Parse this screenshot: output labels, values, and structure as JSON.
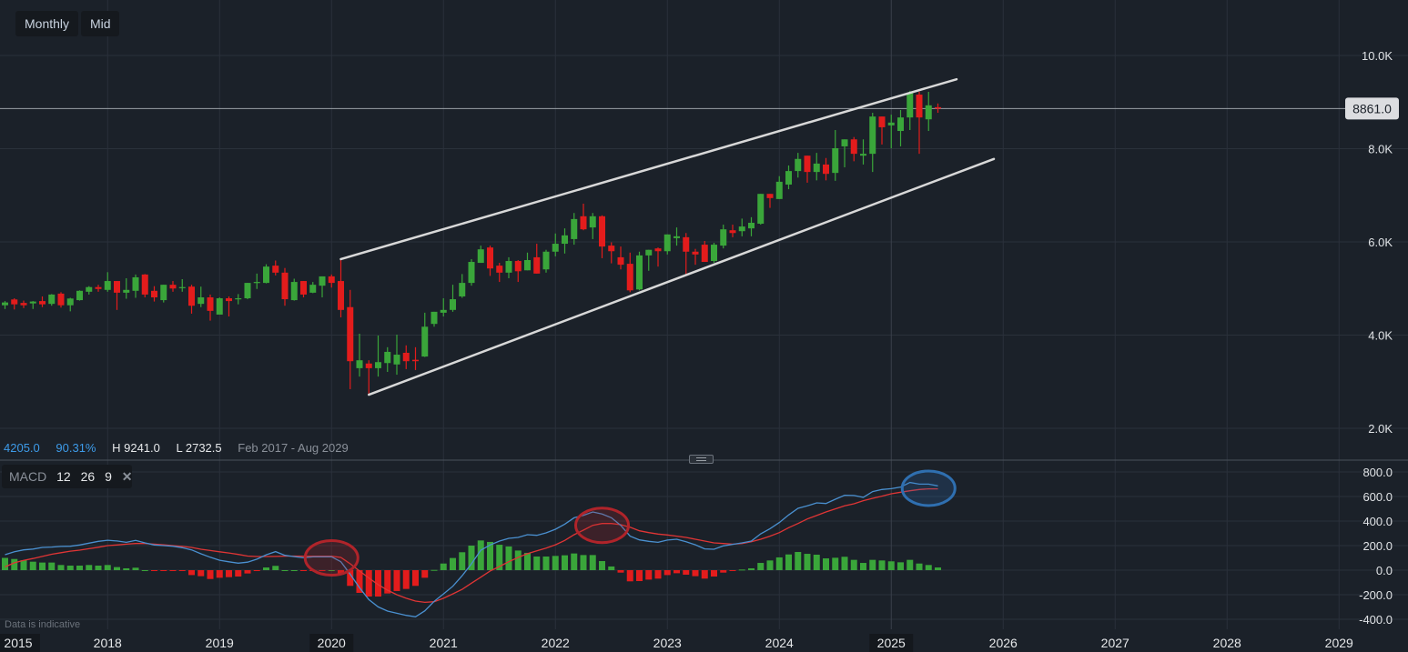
{
  "toolbar": {
    "interval_label": "Monthly",
    "price_type_label": "Mid"
  },
  "stats": {
    "change": "4205.0",
    "change_pct": "90.31%",
    "high": "H 9241.0",
    "low": "L 2732.5",
    "range": "Feb 2017 - Aug 2029"
  },
  "macd_legend": {
    "name": "MACD",
    "fast": "12",
    "slow": "26",
    "signal": "9",
    "close_icon": "close-icon"
  },
  "disclaimer": "Data is indicative",
  "colors": {
    "background": "#1b2129",
    "up": "#3aa63a",
    "down": "#e31c1c",
    "macd_line": "#4a90d0",
    "signal_line": "#e03535",
    "trendline": "#d8d8d8",
    "accent_text": "#3d9be9"
  },
  "chart_data": [
    {
      "type": "candlestick",
      "interval": "monthly",
      "last_price": 8861.0,
      "last_price_label": "8861.0",
      "y_ticks": [
        {
          "v": 10000,
          "label": "10.0K"
        },
        {
          "v": 8000,
          "label": "8.0K"
        },
        {
          "v": 6000,
          "label": "6.0K"
        },
        {
          "v": 4000,
          "label": "4.0K"
        },
        {
          "v": 2000,
          "label": "2.0K"
        }
      ],
      "x_ticks": [
        "2015",
        "2018",
        "2019",
        "2020",
        "2021",
        "2022",
        "2023",
        "2024",
        "2025",
        "2026",
        "2027",
        "2028",
        "2029"
      ],
      "x_ticks_highlighted": [
        "2015",
        "2020",
        "2025"
      ],
      "grid": true,
      "candles_columns": [
        "date",
        "open",
        "high",
        "low",
        "close"
      ],
      "candles": [
        [
          "2017-02",
          4640,
          4730,
          4560,
          4700
        ],
        [
          "2017-03",
          4765,
          4790,
          4550,
          4660
        ],
        [
          "2017-04",
          4690,
          4740,
          4580,
          4640
        ],
        [
          "2017-05",
          4680,
          4730,
          4560,
          4720
        ],
        [
          "2017-06",
          4730,
          4830,
          4600,
          4660
        ],
        [
          "2017-07",
          4670,
          4880,
          4630,
          4870
        ],
        [
          "2017-08",
          4890,
          4920,
          4590,
          4640
        ],
        [
          "2017-09",
          4640,
          4800,
          4510,
          4785
        ],
        [
          "2017-10",
          4750,
          4960,
          4740,
          4950
        ],
        [
          "2017-11",
          4930,
          5050,
          4870,
          5030
        ],
        [
          "2017-12",
          5030,
          5080,
          4930,
          4990
        ],
        [
          "2018-01",
          4970,
          5350,
          4930,
          5160
        ],
        [
          "2018-02",
          5160,
          5160,
          4540,
          4910
        ],
        [
          "2018-03",
          4910,
          5220,
          4780,
          4970
        ],
        [
          "2018-04",
          4950,
          5300,
          4800,
          5240
        ],
        [
          "2018-05",
          5300,
          5310,
          4810,
          4870
        ],
        [
          "2018-06",
          4950,
          5050,
          4720,
          4810
        ],
        [
          "2018-07",
          4750,
          5080,
          4700,
          5080
        ],
        [
          "2018-08",
          5080,
          5160,
          4930,
          5000
        ],
        [
          "2018-09",
          5020,
          5200,
          4930,
          5030
        ],
        [
          "2018-10",
          5040,
          5080,
          4460,
          4630
        ],
        [
          "2018-11",
          4670,
          5040,
          4600,
          4810
        ],
        [
          "2018-12",
          4810,
          4870,
          4310,
          4520
        ],
        [
          "2019-01",
          4440,
          4810,
          4440,
          4790
        ],
        [
          "2019-02",
          4790,
          4830,
          4400,
          4730
        ],
        [
          "2019-03",
          4780,
          4880,
          4660,
          4790
        ],
        [
          "2019-04",
          4790,
          5120,
          4770,
          5120
        ],
        [
          "2019-05",
          5130,
          5320,
          4990,
          5140
        ],
        [
          "2019-06",
          5120,
          5520,
          5110,
          5470
        ],
        [
          "2019-07",
          5490,
          5600,
          5280,
          5340
        ],
        [
          "2019-08",
          5340,
          5440,
          4630,
          4770
        ],
        [
          "2019-09",
          4750,
          5210,
          4740,
          5140
        ],
        [
          "2019-10",
          5160,
          5160,
          4810,
          4870
        ],
        [
          "2019-11",
          4910,
          5140,
          4900,
          5080
        ],
        [
          "2019-12",
          5060,
          5260,
          4810,
          5260
        ],
        [
          "2020-01",
          5260,
          5300,
          5020,
          5120
        ],
        [
          "2020-02",
          5160,
          5630,
          4380,
          4540
        ],
        [
          "2020-03",
          4600,
          4970,
          2840,
          3440
        ],
        [
          "2020-04",
          3290,
          4030,
          3110,
          3460
        ],
        [
          "2020-05",
          3390,
          3460,
          2732.5,
          3290
        ],
        [
          "2020-06",
          3290,
          3990,
          3110,
          3420
        ],
        [
          "2020-07",
          3400,
          3740,
          3210,
          3640
        ],
        [
          "2020-08",
          3370,
          4010,
          3150,
          3580
        ],
        [
          "2020-09",
          3620,
          3780,
          3270,
          3440
        ],
        [
          "2020-10",
          3470,
          3740,
          3250,
          3440
        ],
        [
          "2020-11",
          3540,
          4480,
          3530,
          4180
        ],
        [
          "2020-12",
          4240,
          4500,
          4180,
          4500
        ],
        [
          "2021-01",
          4480,
          4790,
          4400,
          4540
        ],
        [
          "2021-02",
          4540,
          5080,
          4500,
          4770
        ],
        [
          "2021-03",
          4830,
          5310,
          4800,
          5120
        ],
        [
          "2021-04",
          5120,
          5630,
          5060,
          5570
        ],
        [
          "2021-05",
          5550,
          5920,
          5550,
          5840
        ],
        [
          "2021-06",
          5880,
          5920,
          5270,
          5430
        ],
        [
          "2021-07",
          5490,
          5550,
          5140,
          5340
        ],
        [
          "2021-08",
          5340,
          5670,
          5220,
          5590
        ],
        [
          "2021-09",
          5590,
          5610,
          5140,
          5370
        ],
        [
          "2021-10",
          5390,
          5770,
          5390,
          5610
        ],
        [
          "2021-11",
          5670,
          5960,
          5320,
          5320
        ],
        [
          "2021-12",
          5410,
          5830,
          5340,
          5790
        ],
        [
          "2022-01",
          5790,
          6180,
          5690,
          5960
        ],
        [
          "2022-02",
          5960,
          6290,
          5750,
          6140
        ],
        [
          "2022-03",
          6060,
          6620,
          5940,
          6490
        ],
        [
          "2022-04",
          6550,
          6820,
          6250,
          6270
        ],
        [
          "2022-05",
          6310,
          6620,
          6060,
          6550
        ],
        [
          "2022-06",
          6550,
          6570,
          5650,
          5900
        ],
        [
          "2022-07",
          5920,
          5990,
          5540,
          5800
        ],
        [
          "2022-08",
          5670,
          5900,
          5410,
          5510
        ],
        [
          "2022-09",
          5530,
          5770,
          4920,
          4960
        ],
        [
          "2022-10",
          4980,
          5790,
          4960,
          5710
        ],
        [
          "2022-11",
          5710,
          5830,
          5380,
          5830
        ],
        [
          "2022-12",
          5860,
          5880,
          5470,
          5800
        ],
        [
          "2023-01",
          5800,
          6160,
          5730,
          6160
        ],
        [
          "2023-02",
          6080,
          6310,
          5920,
          6120
        ],
        [
          "2023-03",
          6100,
          6190,
          5300,
          5790
        ],
        [
          "2023-04",
          5790,
          5850,
          5510,
          5730
        ],
        [
          "2023-05",
          5940,
          6020,
          5570,
          5570
        ],
        [
          "2023-06",
          5590,
          5980,
          5550,
          5940
        ],
        [
          "2023-07",
          5920,
          6370,
          5860,
          6270
        ],
        [
          "2023-08",
          6250,
          6370,
          6100,
          6190
        ],
        [
          "2023-09",
          6230,
          6500,
          6120,
          6330
        ],
        [
          "2023-10",
          6290,
          6530,
          6120,
          6410
        ],
        [
          "2023-11",
          6390,
          7030,
          6370,
          7030
        ],
        [
          "2023-12",
          7030,
          7030,
          6730,
          6940
        ],
        [
          "2024-01",
          6920,
          7410,
          6920,
          7290
        ],
        [
          "2024-02",
          7230,
          7640,
          7130,
          7520
        ],
        [
          "2024-03",
          7520,
          7910,
          7380,
          7780
        ],
        [
          "2024-04",
          7850,
          7850,
          7270,
          7500
        ],
        [
          "2024-05",
          7500,
          7910,
          7320,
          7680
        ],
        [
          "2024-06",
          7660,
          7800,
          7320,
          7460
        ],
        [
          "2024-07",
          7480,
          8400,
          7310,
          8010
        ],
        [
          "2024-08",
          8050,
          8200,
          7600,
          8200
        ],
        [
          "2024-09",
          8200,
          8250,
          7730,
          7890
        ],
        [
          "2024-10",
          7850,
          8200,
          7660,
          7890
        ],
        [
          "2024-11",
          7890,
          8770,
          7500,
          8690
        ],
        [
          "2024-12",
          8690,
          8690,
          8090,
          8460
        ],
        [
          "2025-01",
          8500,
          8730,
          8010,
          8560
        ],
        [
          "2025-02",
          8380,
          8830,
          8050,
          8670
        ],
        [
          "2025-03",
          8670,
          9241,
          8400,
          9200
        ],
        [
          "2025-04",
          9160,
          9220,
          7890,
          8670
        ],
        [
          "2025-05",
          8630,
          9220,
          8380,
          8930
        ],
        [
          "2025-06",
          8890,
          8970,
          8770,
          8861
        ]
      ],
      "trendlines": [
        {
          "from": [
            "2020-02",
            5630
          ],
          "to": [
            "2025-08",
            9490
          ]
        },
        {
          "from": [
            "2020-05",
            2720
          ],
          "to": [
            "2025-12",
            7780
          ]
        }
      ]
    },
    {
      "type": "macd",
      "params": [
        12,
        26,
        9
      ],
      "y_ticks": [
        {
          "v": 800,
          "label": "800.0"
        },
        {
          "v": 600,
          "label": "600.0"
        },
        {
          "v": 400,
          "label": "400.0"
        },
        {
          "v": 200,
          "label": "200.0"
        },
        {
          "v": 0,
          "label": "0.0"
        },
        {
          "v": -200,
          "label": "-200.0"
        },
        {
          "v": -400,
          "label": "-400.0"
        }
      ],
      "start": "2017-02",
      "macd": [
        126,
        150,
        165,
        172,
        185,
        188,
        193,
        195,
        205,
        220,
        235,
        244,
        238,
        227,
        242,
        222,
        205,
        200,
        195,
        183,
        165,
        133,
        105,
        81,
        68,
        57,
        65,
        90,
        125,
        151,
        121,
        110,
        101,
        109,
        109,
        109,
        69,
        -33,
        -143,
        -240,
        -299,
        -333,
        -351,
        -368,
        -380,
        -331,
        -254,
        -193,
        -131,
        -45,
        52,
        163,
        205,
        237,
        259,
        267,
        289,
        284,
        304,
        333,
        375,
        427,
        447,
        474,
        457,
        427,
        365,
        277,
        247,
        235,
        227,
        245,
        252,
        232,
        207,
        173,
        170,
        198,
        210,
        222,
        237,
        296,
        338,
        388,
        450,
        504,
        524,
        548,
        543,
        578,
        610,
        608,
        593,
        640,
        657,
        664,
        677,
        714,
        701,
        701,
        687
      ],
      "signal": [
        27,
        60,
        80,
        95,
        112,
        130,
        142,
        155,
        163,
        175,
        187,
        200,
        205,
        212,
        217,
        217,
        212,
        207,
        200,
        193,
        185,
        170,
        160,
        150,
        140,
        128,
        115,
        111,
        111,
        112,
        114,
        115,
        114,
        114,
        114,
        114,
        104,
        52,
        -7,
        -64,
        -118,
        -163,
        -200,
        -229,
        -252,
        -262,
        -257,
        -229,
        -193,
        -156,
        -106,
        -57,
        -7,
        30,
        69,
        104,
        134,
        158,
        180,
        207,
        242,
        289,
        326,
        365,
        380,
        380,
        370,
        350,
        321,
        306,
        294,
        287,
        277,
        267,
        252,
        237,
        222,
        217,
        212,
        217,
        232,
        252,
        277,
        306,
        346,
        380,
        417,
        445,
        474,
        499,
        524,
        541,
        566,
        585,
        603,
        622,
        635,
        647,
        657,
        662,
        662
      ],
      "histogram": [
        100,
        91,
        81,
        69,
        62,
        62,
        42,
        37,
        37,
        42,
        37,
        42,
        25,
        15,
        20,
        0,
        -5,
        -5,
        -5,
        -7,
        -40,
        -49,
        -72,
        -62,
        -57,
        -52,
        -27,
        -7,
        22,
        35,
        0,
        0,
        -5,
        -5,
        -3,
        0,
        -37,
        -128,
        -185,
        -215,
        -215,
        -190,
        -170,
        -153,
        -128,
        -62,
        2,
        54,
        99,
        146,
        200,
        242,
        230,
        207,
        193,
        160,
        141,
        111,
        111,
        116,
        121,
        136,
        123,
        123,
        74,
        30,
        -20,
        -91,
        -89,
        -77,
        -69,
        -40,
        -25,
        -37,
        -49,
        -69,
        -52,
        -20,
        -7,
        5,
        15,
        59,
        79,
        104,
        128,
        148,
        133,
        126,
        96,
        101,
        109,
        84,
        59,
        84,
        79,
        72,
        64,
        84,
        54,
        42,
        22
      ],
      "annotations": [
        {
          "shape": "ellipse",
          "color": "#b0242a",
          "at": "2020-01",
          "value": 100
        },
        {
          "shape": "ellipse",
          "color": "#b0242a",
          "at": "2022-06",
          "value": 365
        },
        {
          "shape": "ellipse",
          "color": "#2f6fb0",
          "at": "2025-05",
          "value": 667
        }
      ]
    }
  ]
}
